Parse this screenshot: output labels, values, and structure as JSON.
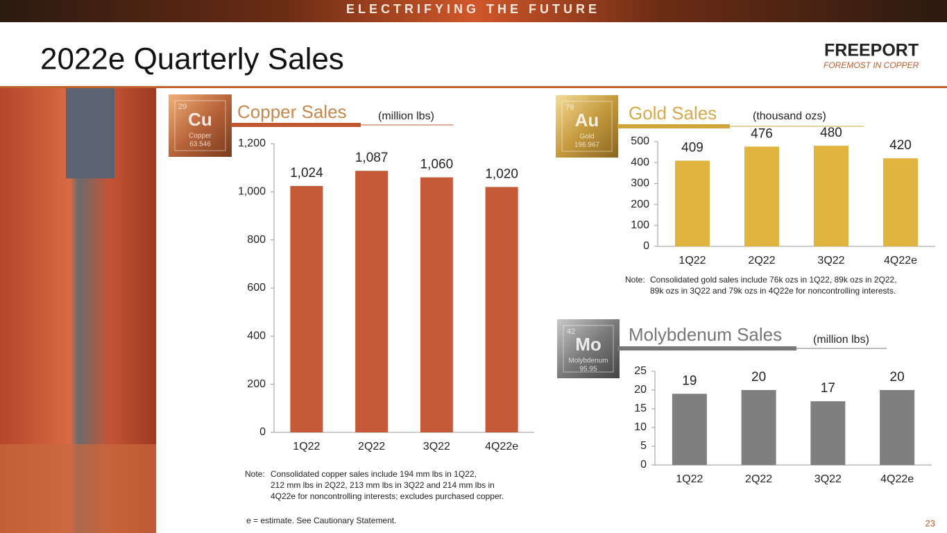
{
  "header": {
    "banner": "ELECTRIFYING THE FUTURE",
    "title": "2022e Quarterly Sales",
    "logo": "FREEPORT",
    "tagline": "FOREMOST IN COPPER"
  },
  "chart_data": [
    {
      "type": "bar",
      "title": "Copper Sales",
      "unit": "(million lbs)",
      "element": {
        "number": "29",
        "symbol": "Cu",
        "name": "Copper",
        "mass": "63.546"
      },
      "categories": [
        "1Q22",
        "2Q22",
        "3Q22",
        "4Q22e"
      ],
      "values": [
        1024,
        1087,
        1060,
        1020
      ],
      "value_labels": [
        "1,024",
        "1,087",
        "1,060",
        "1,020"
      ],
      "color": "#c45a37",
      "ylim": [
        0,
        1200
      ],
      "yticks": [
        0,
        200,
        400,
        600,
        800,
        {
          "value": 1000,
          "label": "1,000"
        },
        {
          "value": 1200,
          "label": "1,200"
        }
      ],
      "note": [
        "Note:",
        "Consolidated copper sales include 194 mm lbs in 1Q22,",
        "212 mm lbs in 2Q22, 213 mm lbs in 3Q22 and 214 mm lbs in",
        "4Q22e for noncontrolling interests; excludes purchased copper."
      ]
    },
    {
      "type": "bar",
      "title": "Gold Sales",
      "unit": "(thousand ozs)",
      "element": {
        "number": "79",
        "symbol": "Au",
        "name": "Gold",
        "mass": "196.967"
      },
      "categories": [
        "1Q22",
        "2Q22",
        "3Q22",
        "4Q22e"
      ],
      "values": [
        409,
        476,
        480,
        420
      ],
      "color": "#e0b43e",
      "ylim": [
        0,
        500
      ],
      "yticks": [
        0,
        100,
        200,
        300,
        400,
        500
      ],
      "note": [
        "Note:",
        "Consolidated gold sales include 76k ozs in 1Q22, 89k ozs in 2Q22,",
        "89k ozs in 3Q22 and 79k ozs in 4Q22e for noncontrolling interests."
      ]
    },
    {
      "type": "bar",
      "title": "Molybdenum Sales",
      "unit": "(million lbs)",
      "element": {
        "number": "42",
        "symbol": "Mo",
        "name": "Molybdenum",
        "mass": "95.95"
      },
      "categories": [
        "1Q22",
        "2Q22",
        "3Q22",
        "4Q22e"
      ],
      "values": [
        19,
        20,
        17,
        20
      ],
      "color": "#7f7f7f",
      "ylim": [
        0,
        25
      ],
      "yticks": [
        0,
        5,
        10,
        15,
        20,
        25
      ]
    }
  ],
  "footer": {
    "estimate_note": "e = estimate. See Cautionary Statement.",
    "page_number": "23"
  }
}
